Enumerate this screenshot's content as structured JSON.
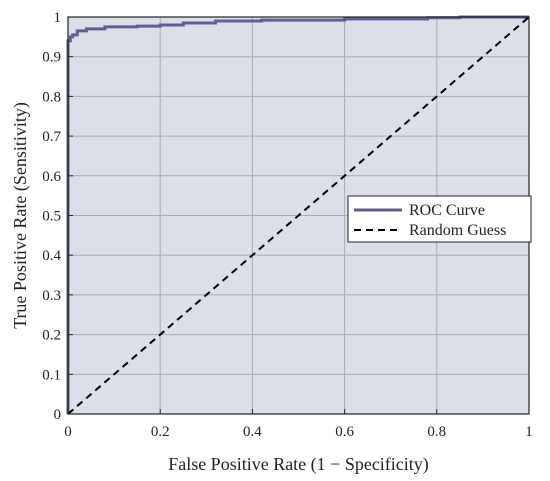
{
  "chart_data": {
    "type": "line",
    "xlabel": "False Positive Rate (1 − Specificity)",
    "ylabel": "True Positive Rate (Sensitivity)",
    "xlim": [
      0,
      1
    ],
    "ylim": [
      0,
      1
    ],
    "x_ticks": [
      "0",
      "0.2",
      "0.4",
      "0.6",
      "0.8",
      "1"
    ],
    "y_ticks": [
      "0",
      "0.1",
      "0.2",
      "0.3",
      "0.4",
      "0.5",
      "0.6",
      "0.7",
      "0.8",
      "0.9",
      "1"
    ],
    "grid": true,
    "legend_position": "center-right",
    "series": [
      {
        "name": "ROC Curve",
        "style": "solid",
        "color": "#5f5f95",
        "x": [
          0,
          0,
          0.005,
          0.005,
          0.01,
          0.01,
          0.02,
          0.02,
          0.04,
          0.04,
          0.08,
          0.08,
          0.15,
          0.15,
          0.2,
          0.2,
          0.25,
          0.25,
          0.32,
          0.32,
          0.42,
          0.42,
          0.6,
          0.6,
          0.78,
          0.78,
          0.85,
          0.85,
          1
        ],
        "y": [
          0,
          0.94,
          0.94,
          0.95,
          0.95,
          0.955,
          0.955,
          0.965,
          0.965,
          0.97,
          0.97,
          0.975,
          0.975,
          0.977,
          0.977,
          0.98,
          0.98,
          0.985,
          0.985,
          0.99,
          0.99,
          0.992,
          0.992,
          0.995,
          0.995,
          0.998,
          0.998,
          1,
          1
        ]
      },
      {
        "name": "Random Guess",
        "style": "dashed",
        "color": "#000000",
        "x": [
          0,
          1
        ],
        "y": [
          0,
          1
        ]
      }
    ]
  },
  "colors": {
    "plot_background": "#dcdfe8",
    "grid": "#a9abb3",
    "axis": "#222222"
  }
}
